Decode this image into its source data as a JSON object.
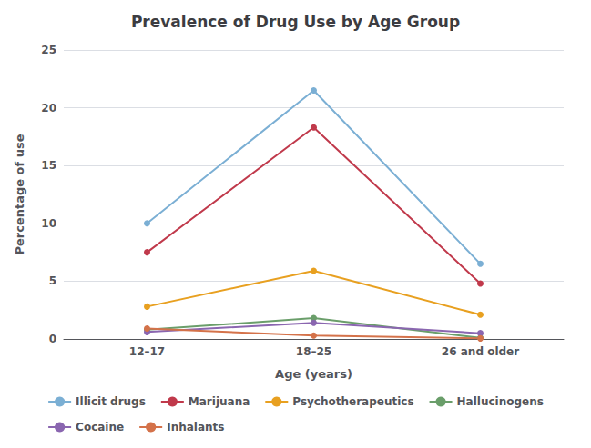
{
  "chart_data": {
    "type": "line",
    "title": "Prevalence of Drug Use by Age Group",
    "xlabel": "Age (years)",
    "ylabel": "Percentage of use",
    "categories": [
      "12–17",
      "18–25",
      "26 and older"
    ],
    "series": [
      {
        "name": "Illicit drugs",
        "color": "#7bafd4",
        "marker": "circle",
        "values": [
          10.0,
          21.5,
          6.5
        ]
      },
      {
        "name": "Marijuana",
        "color": "#c0394b",
        "marker": "circle",
        "values": [
          7.5,
          18.3,
          4.8
        ]
      },
      {
        "name": "Psychotherapeutics",
        "color": "#e8a020",
        "marker": "circle",
        "values": [
          2.8,
          5.9,
          2.1
        ]
      },
      {
        "name": "Hallucinogens",
        "color": "#6a9e6a",
        "marker": "circle",
        "values": [
          0.8,
          1.8,
          0.1
        ]
      },
      {
        "name": "Cocaine",
        "color": "#8a66b0",
        "marker": "circle",
        "values": [
          0.6,
          1.4,
          0.5
        ]
      },
      {
        "name": "Inhalants",
        "color": "#d4724a",
        "marker": "circle",
        "values": [
          0.9,
          0.3,
          0.05
        ]
      }
    ],
    "ylim": [
      0,
      25
    ],
    "yticks": [
      0,
      5,
      10,
      15,
      20,
      25
    ],
    "grid": true,
    "legend": "bottom"
  }
}
